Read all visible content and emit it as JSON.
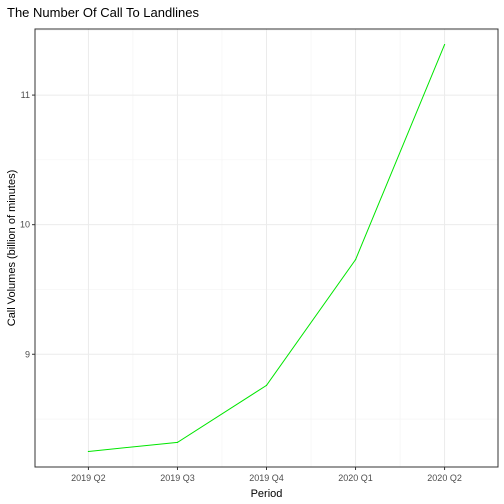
{
  "chart_data": {
    "type": "line",
    "title": "The Number Of Call To Landlines",
    "xlabel": "Period",
    "ylabel": "Call Volumes (billion of minutes)",
    "categories": [
      "2019 Q2",
      "2019 Q3",
      "2019 Q4",
      "2020 Q1",
      "2020 Q2"
    ],
    "series": [
      {
        "values": [
          8.25,
          8.32,
          8.76,
          9.73,
          11.39
        ],
        "color": "#00e600"
      }
    ],
    "yticks": [
      9,
      10,
      11
    ],
    "ylim": [
      8.13,
      11.51
    ],
    "grid": true,
    "legend": "none"
  }
}
